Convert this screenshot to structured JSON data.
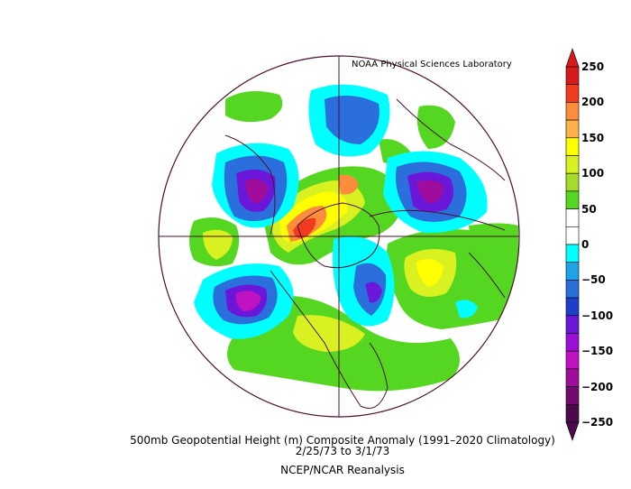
{
  "credit": "NOAA Physical Sciences Laboratory",
  "caption": {
    "line1": "500mb Geopotential Height (m) Composite Anomaly (1991–2020 Climatology)",
    "line2": "2/25/73   to 3/1/73",
    "line3": "NCEP/NCAR Reanalysis"
  },
  "colorbar": {
    "ticks": [
      "250",
      "200",
      "150",
      "100",
      "50",
      "0",
      "−50",
      "−100",
      "−150",
      "−200",
      "−250"
    ],
    "colors": [
      "#d7191c",
      "#f03b20",
      "#fd8d3c",
      "#feb24c",
      "#ffff00",
      "#d9f021",
      "#a6dc28",
      "#55d620",
      "#ffffff",
      "#ffffff",
      "#00ffff",
      "#1fa3e8",
      "#2a6fdb",
      "#1e3fc9",
      "#6b17d9",
      "#9a10d6",
      "#c012c2",
      "#a00c9c",
      "#700a6e",
      "#4a0a4c"
    ]
  }
}
